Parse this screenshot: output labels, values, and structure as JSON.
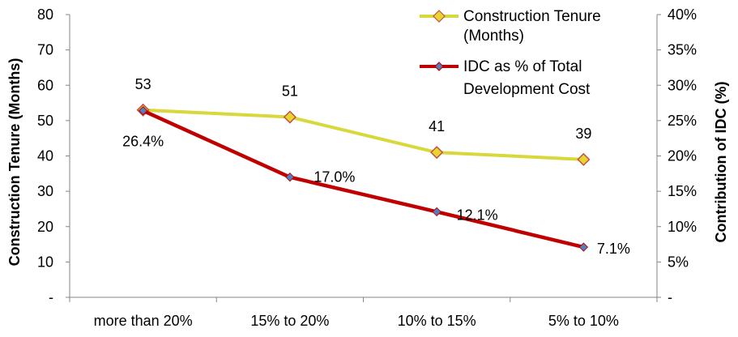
{
  "chart_data": {
    "type": "line",
    "categories": [
      "more than 20%",
      "15% to 20%",
      "10% to 15%",
      "5% to 10%"
    ],
    "series": [
      {
        "name_lines": [
          "Construction Tenure",
          "(Months)"
        ],
        "axis": "left",
        "values": [
          53,
          51,
          41,
          39
        ],
        "labels": [
          "53",
          "51",
          "41",
          "39"
        ],
        "line_color": "#D8D83C",
        "marker": "diamond",
        "marker_fill": "#E6D62E",
        "marker_stroke": "#C0504D"
      },
      {
        "name_lines": [
          "IDC as  % of Total",
          "Development  Cost"
        ],
        "axis": "right",
        "values": [
          26.4,
          17.0,
          12.1,
          7.1
        ],
        "labels": [
          "26.4%",
          "17.0%",
          "12.1%",
          "7.1%"
        ],
        "line_color": "#C00000",
        "marker": "diamond",
        "marker_fill": "#4F81BD",
        "marker_stroke": "#C00000"
      }
    ],
    "y_left": {
      "label": "Construction Tenure (Months)",
      "range": [
        0,
        80
      ],
      "ticks": [
        "-",
        "10",
        "20",
        "30",
        "40",
        "50",
        "60",
        "70",
        "80"
      ]
    },
    "y_right": {
      "label": "Contribution of IDC (%)",
      "range": [
        0,
        40
      ],
      "ticks": [
        "-",
        "5%",
        "10%",
        "15%",
        "20%",
        "25%",
        "30%",
        "35%",
        "40%"
      ]
    },
    "grid": false,
    "legend_position": "top-right"
  }
}
